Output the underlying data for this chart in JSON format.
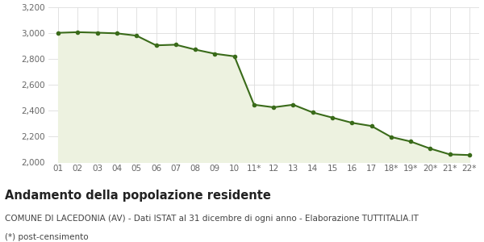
{
  "x_labels": [
    "01",
    "02",
    "03",
    "04",
    "05",
    "06",
    "07",
    "08",
    "09",
    "10",
    "11*",
    "12",
    "13",
    "14",
    "15",
    "16",
    "17",
    "18*",
    "19*",
    "20*",
    "21*",
    "22*"
  ],
  "y_values": [
    3002,
    3007,
    3003,
    2998,
    2980,
    2905,
    2910,
    2872,
    2840,
    2820,
    2445,
    2425,
    2445,
    2385,
    2345,
    2305,
    2280,
    2195,
    2160,
    2105,
    2060,
    2055
  ],
  "line_color": "#3a6b1a",
  "fill_color": "#edf2e0",
  "marker_style": "o",
  "marker_size": 3.0,
  "line_width": 1.5,
  "ylim": [
    2000,
    3200
  ],
  "yticks": [
    2000,
    2200,
    2400,
    2600,
    2800,
    3000,
    3200
  ],
  "background_color": "#ffffff",
  "plot_bg_color": "#ffffff",
  "grid_color": "#dddddd",
  "title": "Andamento della popolazione residente",
  "subtitle": "COMUNE DI LACEDONIA (AV) - Dati ISTAT al 31 dicembre di ogni anno - Elaborazione TUTTITALIA.IT",
  "footnote": "(*) post-censimento",
  "title_fontsize": 10.5,
  "subtitle_fontsize": 7.5,
  "footnote_fontsize": 7.5,
  "tick_fontsize": 7.5
}
